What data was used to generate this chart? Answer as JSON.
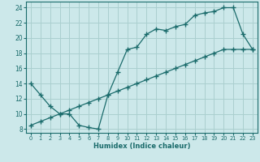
{
  "xlabel": "Humidex (Indice chaleur)",
  "bg_color": "#cce8ea",
  "grid_color": "#aacfcf",
  "line_color": "#1a6b6b",
  "xlim": [
    -0.5,
    23.5
  ],
  "ylim": [
    7.5,
    24.8
  ],
  "xticks": [
    0,
    1,
    2,
    3,
    4,
    5,
    6,
    7,
    8,
    9,
    10,
    11,
    12,
    13,
    14,
    15,
    16,
    17,
    18,
    19,
    20,
    21,
    22,
    23
  ],
  "yticks": [
    8,
    10,
    12,
    14,
    16,
    18,
    20,
    22,
    24
  ],
  "line1_x": [
    0,
    1,
    2,
    3,
    4,
    5,
    6,
    7,
    8,
    9,
    10,
    11,
    12,
    13,
    14,
    15,
    16,
    17,
    18,
    19,
    20,
    21,
    22,
    23
  ],
  "line1_y": [
    14,
    12.5,
    11,
    10,
    10,
    8.5,
    8.2,
    8.0,
    12.5,
    15.5,
    18.5,
    18.8,
    20.5,
    21.2,
    21.0,
    21.5,
    21.8,
    23.0,
    23.3,
    23.5,
    24.0,
    24.0,
    20.5,
    18.5
  ],
  "line2_x": [
    0,
    1,
    2,
    3,
    4,
    5,
    6,
    7,
    8,
    9,
    10,
    11,
    12,
    13,
    14,
    15,
    16,
    17,
    18,
    19,
    20,
    21,
    22,
    23
  ],
  "line2_y": [
    8.5,
    9.0,
    9.5,
    10.0,
    10.5,
    11.0,
    11.5,
    12.0,
    12.5,
    13.0,
    13.5,
    14.0,
    14.5,
    15.0,
    15.5,
    16.0,
    16.5,
    17.0,
    17.5,
    18.0,
    18.5,
    18.5,
    18.5,
    18.5
  ]
}
